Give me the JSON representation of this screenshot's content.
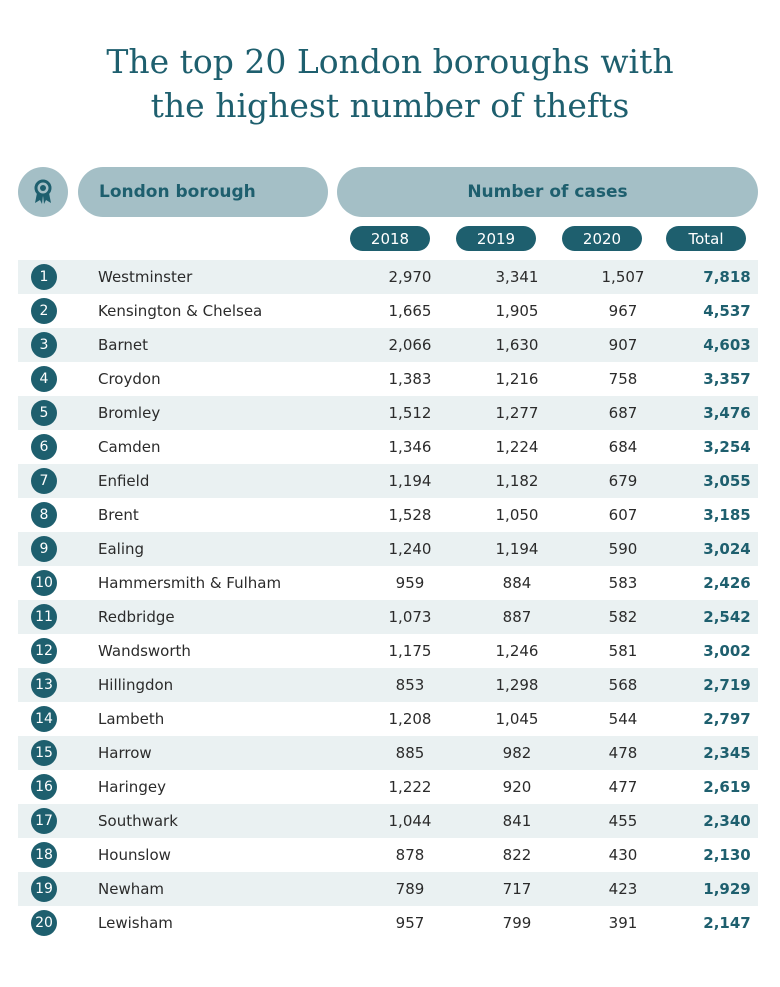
{
  "title_line1": "The top 20 London boroughs with",
  "title_line2": "the highest number of thefts",
  "header": {
    "borough_label": "London borough",
    "cases_label": "Number of cases",
    "col_2018": "2018",
    "col_2019": "2019",
    "col_2020": "2020",
    "col_total": "Total",
    "icon": "award-ribbon-icon"
  },
  "colors": {
    "accent": "#1e5f6e",
    "header_bg": "#a4bfc6",
    "stripe": "#eaf1f2"
  },
  "chart_data": {
    "type": "table",
    "title": "The top 20 London boroughs with the highest number of thefts",
    "columns": [
      "London borough",
      "2018",
      "2019",
      "2020",
      "Total"
    ],
    "rows": [
      {
        "rank": "1",
        "borough": "Westminster",
        "y2018": "2,970",
        "y2019": "3,341",
        "y2020": "1,507",
        "total": "7,818"
      },
      {
        "rank": "2",
        "borough": "Kensington & Chelsea",
        "y2018": "1,665",
        "y2019": "1,905",
        "y2020": "967",
        "total": "4,537"
      },
      {
        "rank": "3",
        "borough": "Barnet",
        "y2018": "2,066",
        "y2019": "1,630",
        "y2020": "907",
        "total": "4,603"
      },
      {
        "rank": "4",
        "borough": "Croydon",
        "y2018": "1,383",
        "y2019": "1,216",
        "y2020": "758",
        "total": "3,357"
      },
      {
        "rank": "5",
        "borough": "Bromley",
        "y2018": "1,512",
        "y2019": "1,277",
        "y2020": "687",
        "total": "3,476"
      },
      {
        "rank": "6",
        "borough": "Camden",
        "y2018": "1,346",
        "y2019": "1,224",
        "y2020": "684",
        "total": "3,254"
      },
      {
        "rank": "7",
        "borough": "Enfield",
        "y2018": "1,194",
        "y2019": "1,182",
        "y2020": "679",
        "total": "3,055"
      },
      {
        "rank": "8",
        "borough": "Brent",
        "y2018": "1,528",
        "y2019": "1,050",
        "y2020": "607",
        "total": "3,185"
      },
      {
        "rank": "9",
        "borough": "Ealing",
        "y2018": "1,240",
        "y2019": "1,194",
        "y2020": "590",
        "total": "3,024"
      },
      {
        "rank": "10",
        "borough": "Hammersmith & Fulham",
        "y2018": "959",
        "y2019": "884",
        "y2020": "583",
        "total": "2,426"
      },
      {
        "rank": "11",
        "borough": "Redbridge",
        "y2018": "1,073",
        "y2019": "887",
        "y2020": "582",
        "total": "2,542"
      },
      {
        "rank": "12",
        "borough": "Wandsworth",
        "y2018": "1,175",
        "y2019": "1,246",
        "y2020": "581",
        "total": "3,002"
      },
      {
        "rank": "13",
        "borough": "Hillingdon",
        "y2018": "853",
        "y2019": "1,298",
        "y2020": "568",
        "total": "2,719"
      },
      {
        "rank": "14",
        "borough": "Lambeth",
        "y2018": "1,208",
        "y2019": "1,045",
        "y2020": "544",
        "total": "2,797"
      },
      {
        "rank": "15",
        "borough": "Harrow",
        "y2018": "885",
        "y2019": "982",
        "y2020": "478",
        "total": "2,345"
      },
      {
        "rank": "16",
        "borough": "Haringey",
        "y2018": "1,222",
        "y2019": "920",
        "y2020": "477",
        "total": "2,619"
      },
      {
        "rank": "17",
        "borough": "Southwark",
        "y2018": "1,044",
        "y2019": "841",
        "y2020": "455",
        "total": "2,340"
      },
      {
        "rank": "18",
        "borough": "Hounslow",
        "y2018": "878",
        "y2019": "822",
        "y2020": "430",
        "total": "2,130"
      },
      {
        "rank": "19",
        "borough": "Newham",
        "y2018": "789",
        "y2019": "717",
        "y2020": "423",
        "total": "1,929"
      },
      {
        "rank": "20",
        "borough": "Lewisham",
        "y2018": "957",
        "y2019": "799",
        "y2020": "391",
        "total": "2,147"
      }
    ]
  }
}
